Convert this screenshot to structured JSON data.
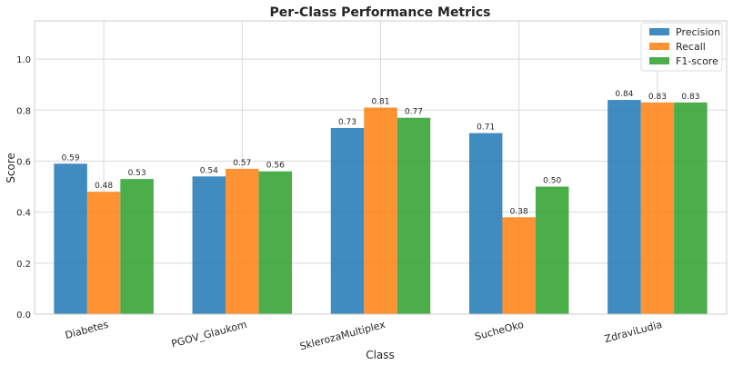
{
  "chart_data": {
    "type": "bar",
    "title": "Per-Class Performance Metrics",
    "xlabel": "Class",
    "ylabel": "Score",
    "ylim": [
      0,
      1.15
    ],
    "yticks": [
      "0.0",
      "0.2",
      "0.4",
      "0.6",
      "0.8",
      "1.0"
    ],
    "grid": true,
    "legend_position": "top-right",
    "categories": [
      "Diabetes",
      "PGOV_Glaukom",
      "SklerozaMultiplex",
      "SucheOko",
      "ZdraviLudia"
    ],
    "series": [
      {
        "name": "Precision",
        "color": "#1f77b4",
        "values": [
          0.59,
          0.54,
          0.73,
          0.71,
          0.84
        ],
        "labels": [
          "0.59",
          "0.54",
          "0.73",
          "0.71",
          "0.84"
        ]
      },
      {
        "name": "Recall",
        "color": "#ff7f0e",
        "values": [
          0.48,
          0.57,
          0.81,
          0.38,
          0.83
        ],
        "labels": [
          "0.48",
          "0.57",
          "0.81",
          "0.38",
          "0.83"
        ]
      },
      {
        "name": "F1-score",
        "color": "#2ca02c",
        "values": [
          0.53,
          0.56,
          0.77,
          0.5,
          0.83
        ],
        "labels": [
          "0.53",
          "0.56",
          "0.77",
          "0.50",
          "0.83"
        ]
      }
    ]
  }
}
